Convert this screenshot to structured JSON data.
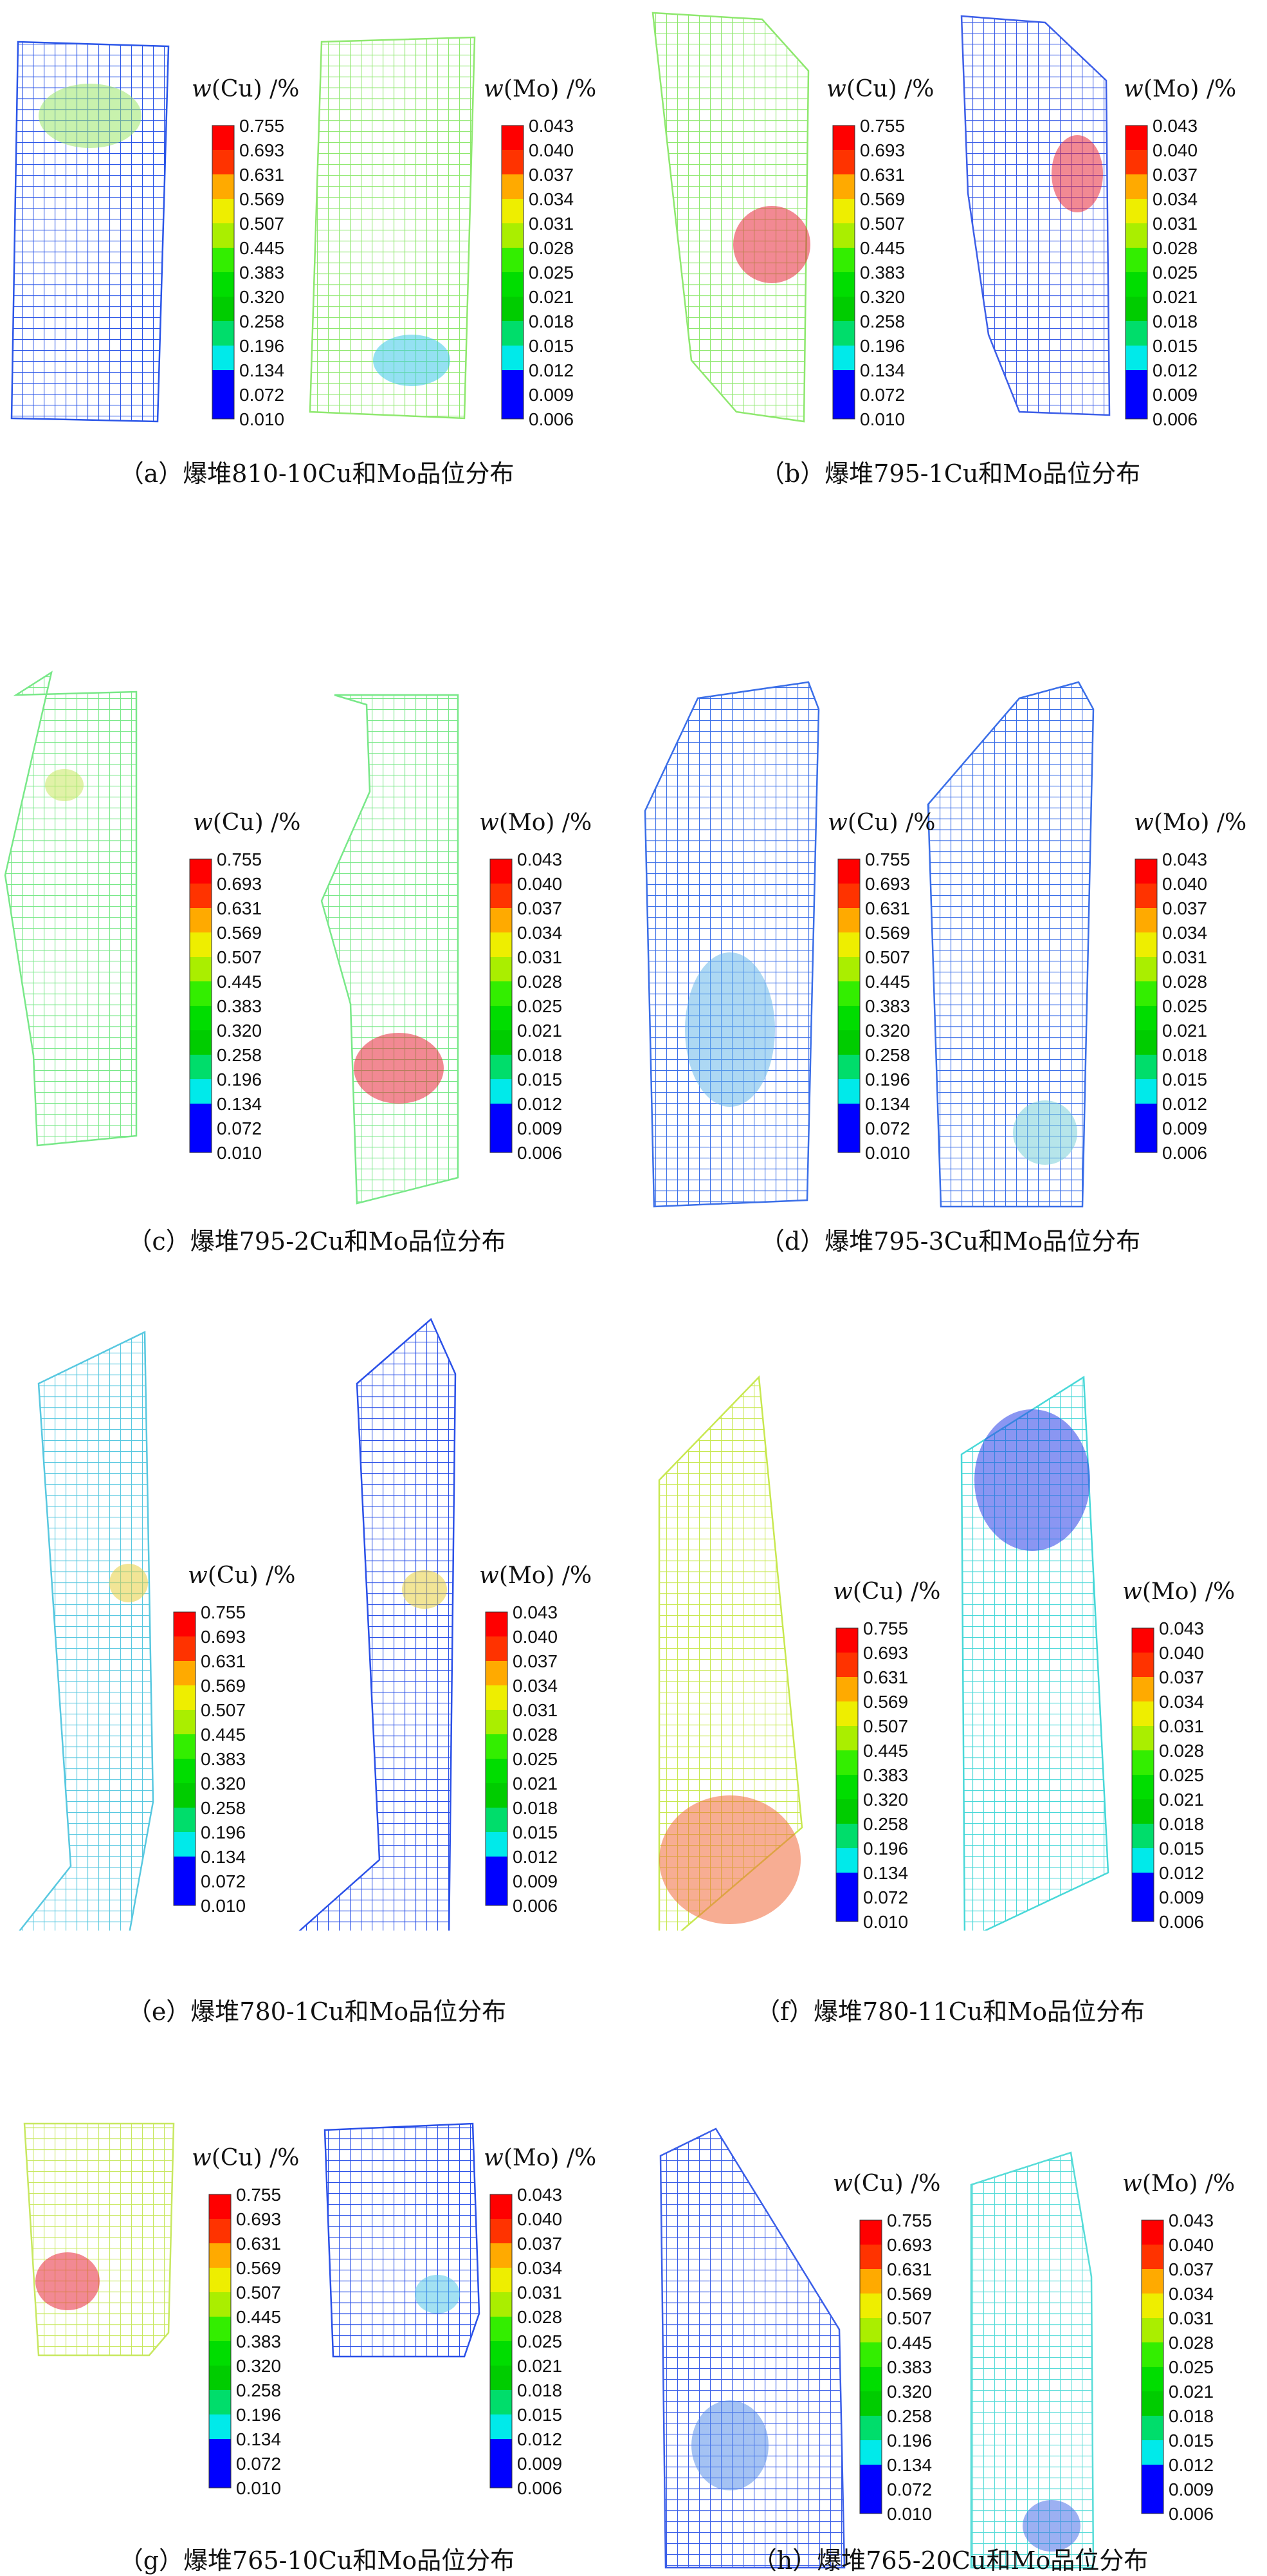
{
  "colors": [
    "#0000ff",
    "#0000ff",
    "#00eaea",
    "#00dd6b",
    "#00cc00",
    "#00dd00",
    "#33ee00",
    "#aaee00",
    "#eeee00",
    "#ffaa00",
    "#ff3300",
    "#ff0000"
  ],
  "legend_label_letter": "w",
  "legend_cu_label": "(Cu) /%",
  "legend_mo_label": "(Mo) /%",
  "cu_ticks": [
    "0.755",
    "0.693",
    "0.631",
    "0.569",
    "0.507",
    "0.445",
    "0.383",
    "0.320",
    "0.258",
    "0.196",
    "0.134",
    "0.072",
    "0.010"
  ],
  "mo_ticks": [
    "0.043",
    "0.040",
    "0.037",
    "0.034",
    "0.031",
    "0.028",
    "0.025",
    "0.021",
    "0.018",
    "0.015",
    "0.012",
    "0.009",
    "0.006"
  ],
  "panels": [
    {
      "caption": "（a）爆堆810-10Cu和Mo品位分布",
      "cu_fill": "#2a55e8",
      "cu_blob": "#9be86a",
      "mo_fill": "#8ee86e",
      "mo_blob": "#3cc8e8"
    },
    {
      "caption": "（b）爆堆795-1Cu和Mo品位分布",
      "cu_fill": "#8ee86e",
      "cu_blob": "#e8283a",
      "mo_fill": "#3c5ee8",
      "mo_blob": "#e8283a"
    },
    {
      "caption": "（c）爆堆795-2Cu和Mo品位分布",
      "cu_fill": "#78e888",
      "cu_blob": "#c8e860",
      "mo_fill": "#78e888",
      "mo_blob": "#e8283a"
    },
    {
      "caption": "（d）爆堆795-3Cu和Mo品位分布",
      "cu_fill": "#3a6ee8",
      "cu_blob": "#6ab8ea",
      "mo_fill": "#3a6ee8",
      "mo_blob": "#7ad0d8"
    },
    {
      "caption": "（e）爆堆780-1Cu和Mo品位分布",
      "cu_fill": "#58c8e0",
      "cu_blob": "#e8d040",
      "mo_fill": "#2a50e8",
      "mo_blob": "#e8d040"
    },
    {
      "caption": "（f）爆堆780-11Cu和Mo品位分布",
      "cu_fill": "#c8e850",
      "cu_blob": "#f06a3a",
      "mo_fill": "#48d8d8",
      "mo_blob": "#2a40e8"
    },
    {
      "caption": "（g）爆堆765-10Cu和Mo品位分布",
      "cu_fill": "#c8e860",
      "cu_blob": "#e8283a",
      "mo_fill": "#2a50e8",
      "mo_blob": "#58c8e8"
    },
    {
      "caption": "（h）爆堆765-20Cu和Mo品位分布",
      "cu_fill": "#3a5ee8",
      "cu_blob": "#5a90ea",
      "mo_fill": "#58dcd8",
      "mo_blob": "#4a70e8"
    }
  ]
}
